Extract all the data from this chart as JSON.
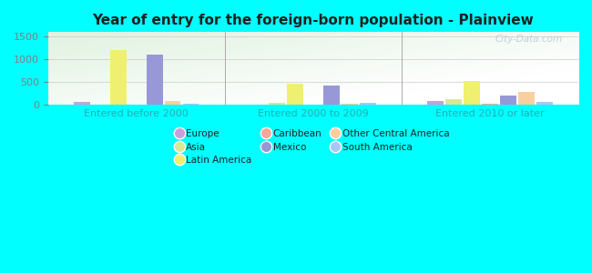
{
  "title": "Year of entry for the foreign-born population - Plainview",
  "groups": [
    "Entered before 2000",
    "Entered 2000 to 2009",
    "Entered 2010 or later"
  ],
  "bar_order": [
    "Europe",
    "Asia",
    "Latin America",
    "Caribbean",
    "Mexico",
    "Other Central America",
    "South America"
  ],
  "colors": {
    "Europe": "#c8a0d8",
    "Asia": "#d8e896",
    "Latin America": "#f0f070",
    "Caribbean": "#f4a898",
    "Mexico": "#9898d8",
    "Other Central America": "#f8d0a0",
    "South America": "#a8c8f8"
  },
  "values": {
    "Entered before 2000": {
      "Europe": 55,
      "Asia": 5,
      "Latin America": 1200,
      "Caribbean": 5,
      "Mexico": 1100,
      "Other Central America": 85,
      "South America": 10
    },
    "Entered 2000 to 2009": {
      "Europe": 5,
      "Asia": 45,
      "Latin America": 450,
      "Caribbean": 5,
      "Mexico": 420,
      "Other Central America": 10,
      "South America": 40
    },
    "Entered 2010 or later": {
      "Europe": 75,
      "Asia": 120,
      "Latin America": 510,
      "Caribbean": 10,
      "Mexico": 195,
      "Other Central America": 270,
      "South America": 60
    }
  },
  "ylim": [
    0,
    1600
  ],
  "yticks": [
    0,
    500,
    1000,
    1500
  ],
  "background_color": "#00ffff",
  "watermark": "City-Data.com",
  "legend_col1": [
    "Europe",
    "Caribbean",
    "South America"
  ],
  "legend_col2": [
    "Asia",
    "Mexico"
  ],
  "legend_col3": [
    "Latin America",
    "Other Central America"
  ]
}
